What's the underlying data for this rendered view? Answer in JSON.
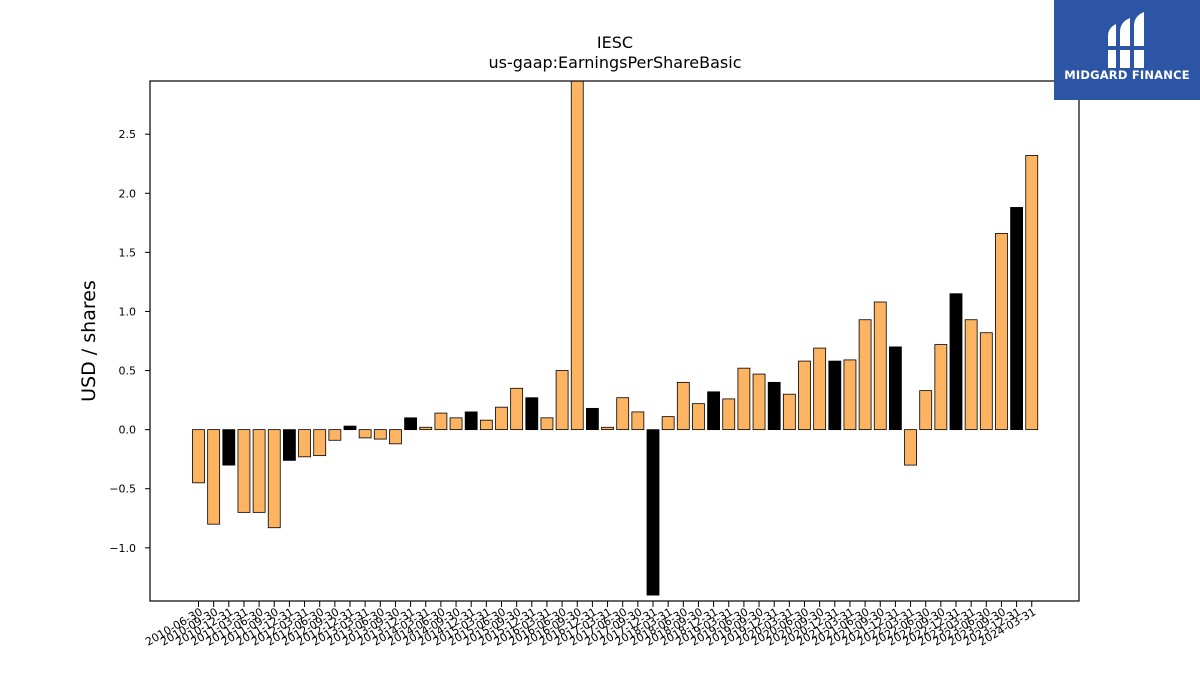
{
  "chart_data": {
    "type": "bar",
    "title": "IESC",
    "subtitle": "us-gaap:EarningsPerShareBasic",
    "ylabel": "USD / shares",
    "xlabel": "",
    "ylim": [
      -1.45,
      2.95
    ],
    "yticks": [
      -1.0,
      -0.5,
      0.0,
      0.5,
      1.0,
      1.5,
      2.0,
      2.5
    ],
    "grid": false,
    "legend": "none",
    "colors": {
      "bar": "#FDB462",
      "highlight": "#000000",
      "edge": "#000000"
    },
    "categories": [
      "2010-06-30",
      "2010-09-30",
      "2010-12-31",
      "2011-03-31",
      "2011-06-30",
      "2011-09-30",
      "2011-12-31",
      "2012-03-31",
      "2012-06-30",
      "2012-09-30",
      "2012-12-31",
      "2013-03-31",
      "2013-06-30",
      "2013-09-30",
      "2013-12-31",
      "2014-03-31",
      "2014-06-30",
      "2014-09-30",
      "2014-12-31",
      "2015-03-31",
      "2015-06-30",
      "2015-09-30",
      "2015-12-31",
      "2016-03-31",
      "2016-06-30",
      "2016-09-30",
      "2016-12-31",
      "2017-03-31",
      "2017-06-30",
      "2017-09-30",
      "2017-12-31",
      "2018-03-31",
      "2018-06-30",
      "2018-09-30",
      "2018-12-31",
      "2019-03-31",
      "2019-06-30",
      "2019-09-30",
      "2019-12-31",
      "2020-03-31",
      "2020-06-30",
      "2020-09-30",
      "2020-12-31",
      "2021-03-31",
      "2021-06-30",
      "2021-09-30",
      "2021-12-31",
      "2022-03-31",
      "2022-06-30",
      "2022-09-30",
      "2022-12-31",
      "2023-03-31",
      "2023-06-30",
      "2023-09-30",
      "2023-12-31",
      "2024-03-31"
    ],
    "values": [
      -0.45,
      -0.8,
      -0.3,
      -0.7,
      -0.7,
      -0.83,
      -0.26,
      -0.23,
      -0.22,
      -0.09,
      0.03,
      -0.07,
      -0.08,
      -0.12,
      0.1,
      0.02,
      0.14,
      0.1,
      0.15,
      0.08,
      0.19,
      0.35,
      0.27,
      0.1,
      0.5,
      2.95,
      0.18,
      0.02,
      0.27,
      0.15,
      -1.4,
      0.11,
      0.4,
      0.22,
      0.32,
      0.26,
      0.52,
      0.47,
      0.4,
      0.3,
      0.58,
      0.69,
      0.58,
      0.59,
      0.93,
      1.08,
      0.7,
      -0.3,
      0.33,
      0.72,
      1.15,
      0.93,
      0.82,
      1.66,
      1.88,
      2.32
    ],
    "highlight": [
      false,
      false,
      true,
      false,
      false,
      false,
      true,
      false,
      false,
      false,
      true,
      false,
      false,
      false,
      true,
      false,
      false,
      false,
      true,
      false,
      false,
      false,
      true,
      false,
      false,
      false,
      true,
      false,
      false,
      false,
      true,
      false,
      false,
      false,
      true,
      false,
      false,
      false,
      true,
      false,
      false,
      false,
      true,
      false,
      false,
      false,
      true,
      false,
      false,
      false,
      true,
      false,
      false,
      false,
      true,
      false
    ]
  },
  "branding": {
    "name": "MIDGARD FINANCE",
    "background": "#2d55a6",
    "icon": "midgard-logo-icon"
  }
}
